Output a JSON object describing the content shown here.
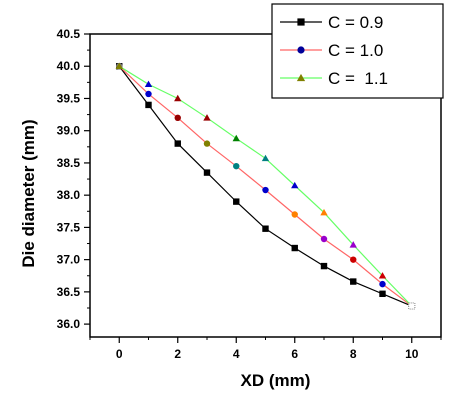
{
  "chart_data": {
    "type": "line",
    "title": "",
    "xlabel": "XD (mm)",
    "ylabel": "Die diameter (mm)",
    "xlim": [
      -1,
      11
    ],
    "ylim": [
      35.8,
      40.5
    ],
    "xticks": [
      "0",
      "2",
      "4",
      "6",
      "8",
      "10"
    ],
    "yticks": [
      "36.0",
      "36.5",
      "37.0",
      "37.5",
      "38.0",
      "38.5",
      "39.0",
      "39.5",
      "40.0",
      "40.5"
    ],
    "grid": false,
    "legend_position": "top-right",
    "series": [
      {
        "name": "C = 0.9",
        "marker": "square",
        "line_color": "#000000",
        "marker_colors": [
          "#000000"
        ],
        "x": [
          0,
          1,
          2,
          3,
          4,
          5,
          6,
          7,
          8,
          9,
          10
        ],
        "y": [
          40.0,
          39.4,
          38.8,
          38.35,
          37.9,
          37.48,
          37.18,
          36.9,
          36.66,
          36.47,
          36.28
        ]
      },
      {
        "name": "C = 1.0",
        "marker": "circle",
        "line_color": "#ff6666",
        "marker_colors": [
          "#808080",
          "#0000cc",
          "#990000",
          "#808000",
          "#008080",
          "#0000cc",
          "#ff8000",
          "#9900cc",
          "#cc0000",
          "#0000cc",
          "#808080"
        ],
        "x": [
          0,
          1,
          2,
          3,
          4,
          5,
          6,
          7,
          8,
          9,
          10
        ],
        "y": [
          40.0,
          39.57,
          39.2,
          38.8,
          38.45,
          38.08,
          37.7,
          37.32,
          37.0,
          36.62,
          36.28
        ]
      },
      {
        "name": "C =  1.1",
        "marker": "triangle",
        "line_color": "#66ff66",
        "marker_colors": [
          "#808000",
          "#0000cc",
          "#990000",
          "#990000",
          "#008000",
          "#008080",
          "#0000cc",
          "#ff8000",
          "#9900cc",
          "#cc0000",
          "#808080"
        ],
        "x": [
          0,
          1,
          2,
          3,
          4,
          5,
          6,
          7,
          8,
          9,
          10
        ],
        "y": [
          40.0,
          39.72,
          39.5,
          39.2,
          38.88,
          38.57,
          38.15,
          37.73,
          37.23,
          36.75,
          36.28
        ]
      }
    ]
  }
}
